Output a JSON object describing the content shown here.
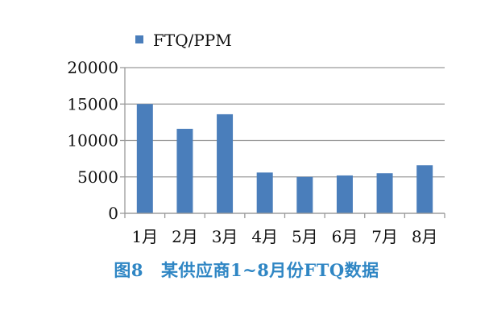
{
  "chart_data": {
    "type": "bar",
    "categories": [
      "1月",
      "2月",
      "3月",
      "4月",
      "5月",
      "6月",
      "7月",
      "8月"
    ],
    "series": [
      {
        "name": "FTQ/PPM",
        "values": [
          15000,
          11600,
          13600,
          5600,
          5000,
          5200,
          5500,
          6600
        ],
        "color": "#4a7ebb"
      }
    ],
    "ylim": [
      0,
      20000
    ],
    "yticks": [
      "0",
      "5000",
      "10000",
      "15000",
      "20000"
    ],
    "grid": true,
    "legend": "top"
  },
  "caption": {
    "label": "图8",
    "text": "某供应商1~8月份FTQ数据"
  }
}
